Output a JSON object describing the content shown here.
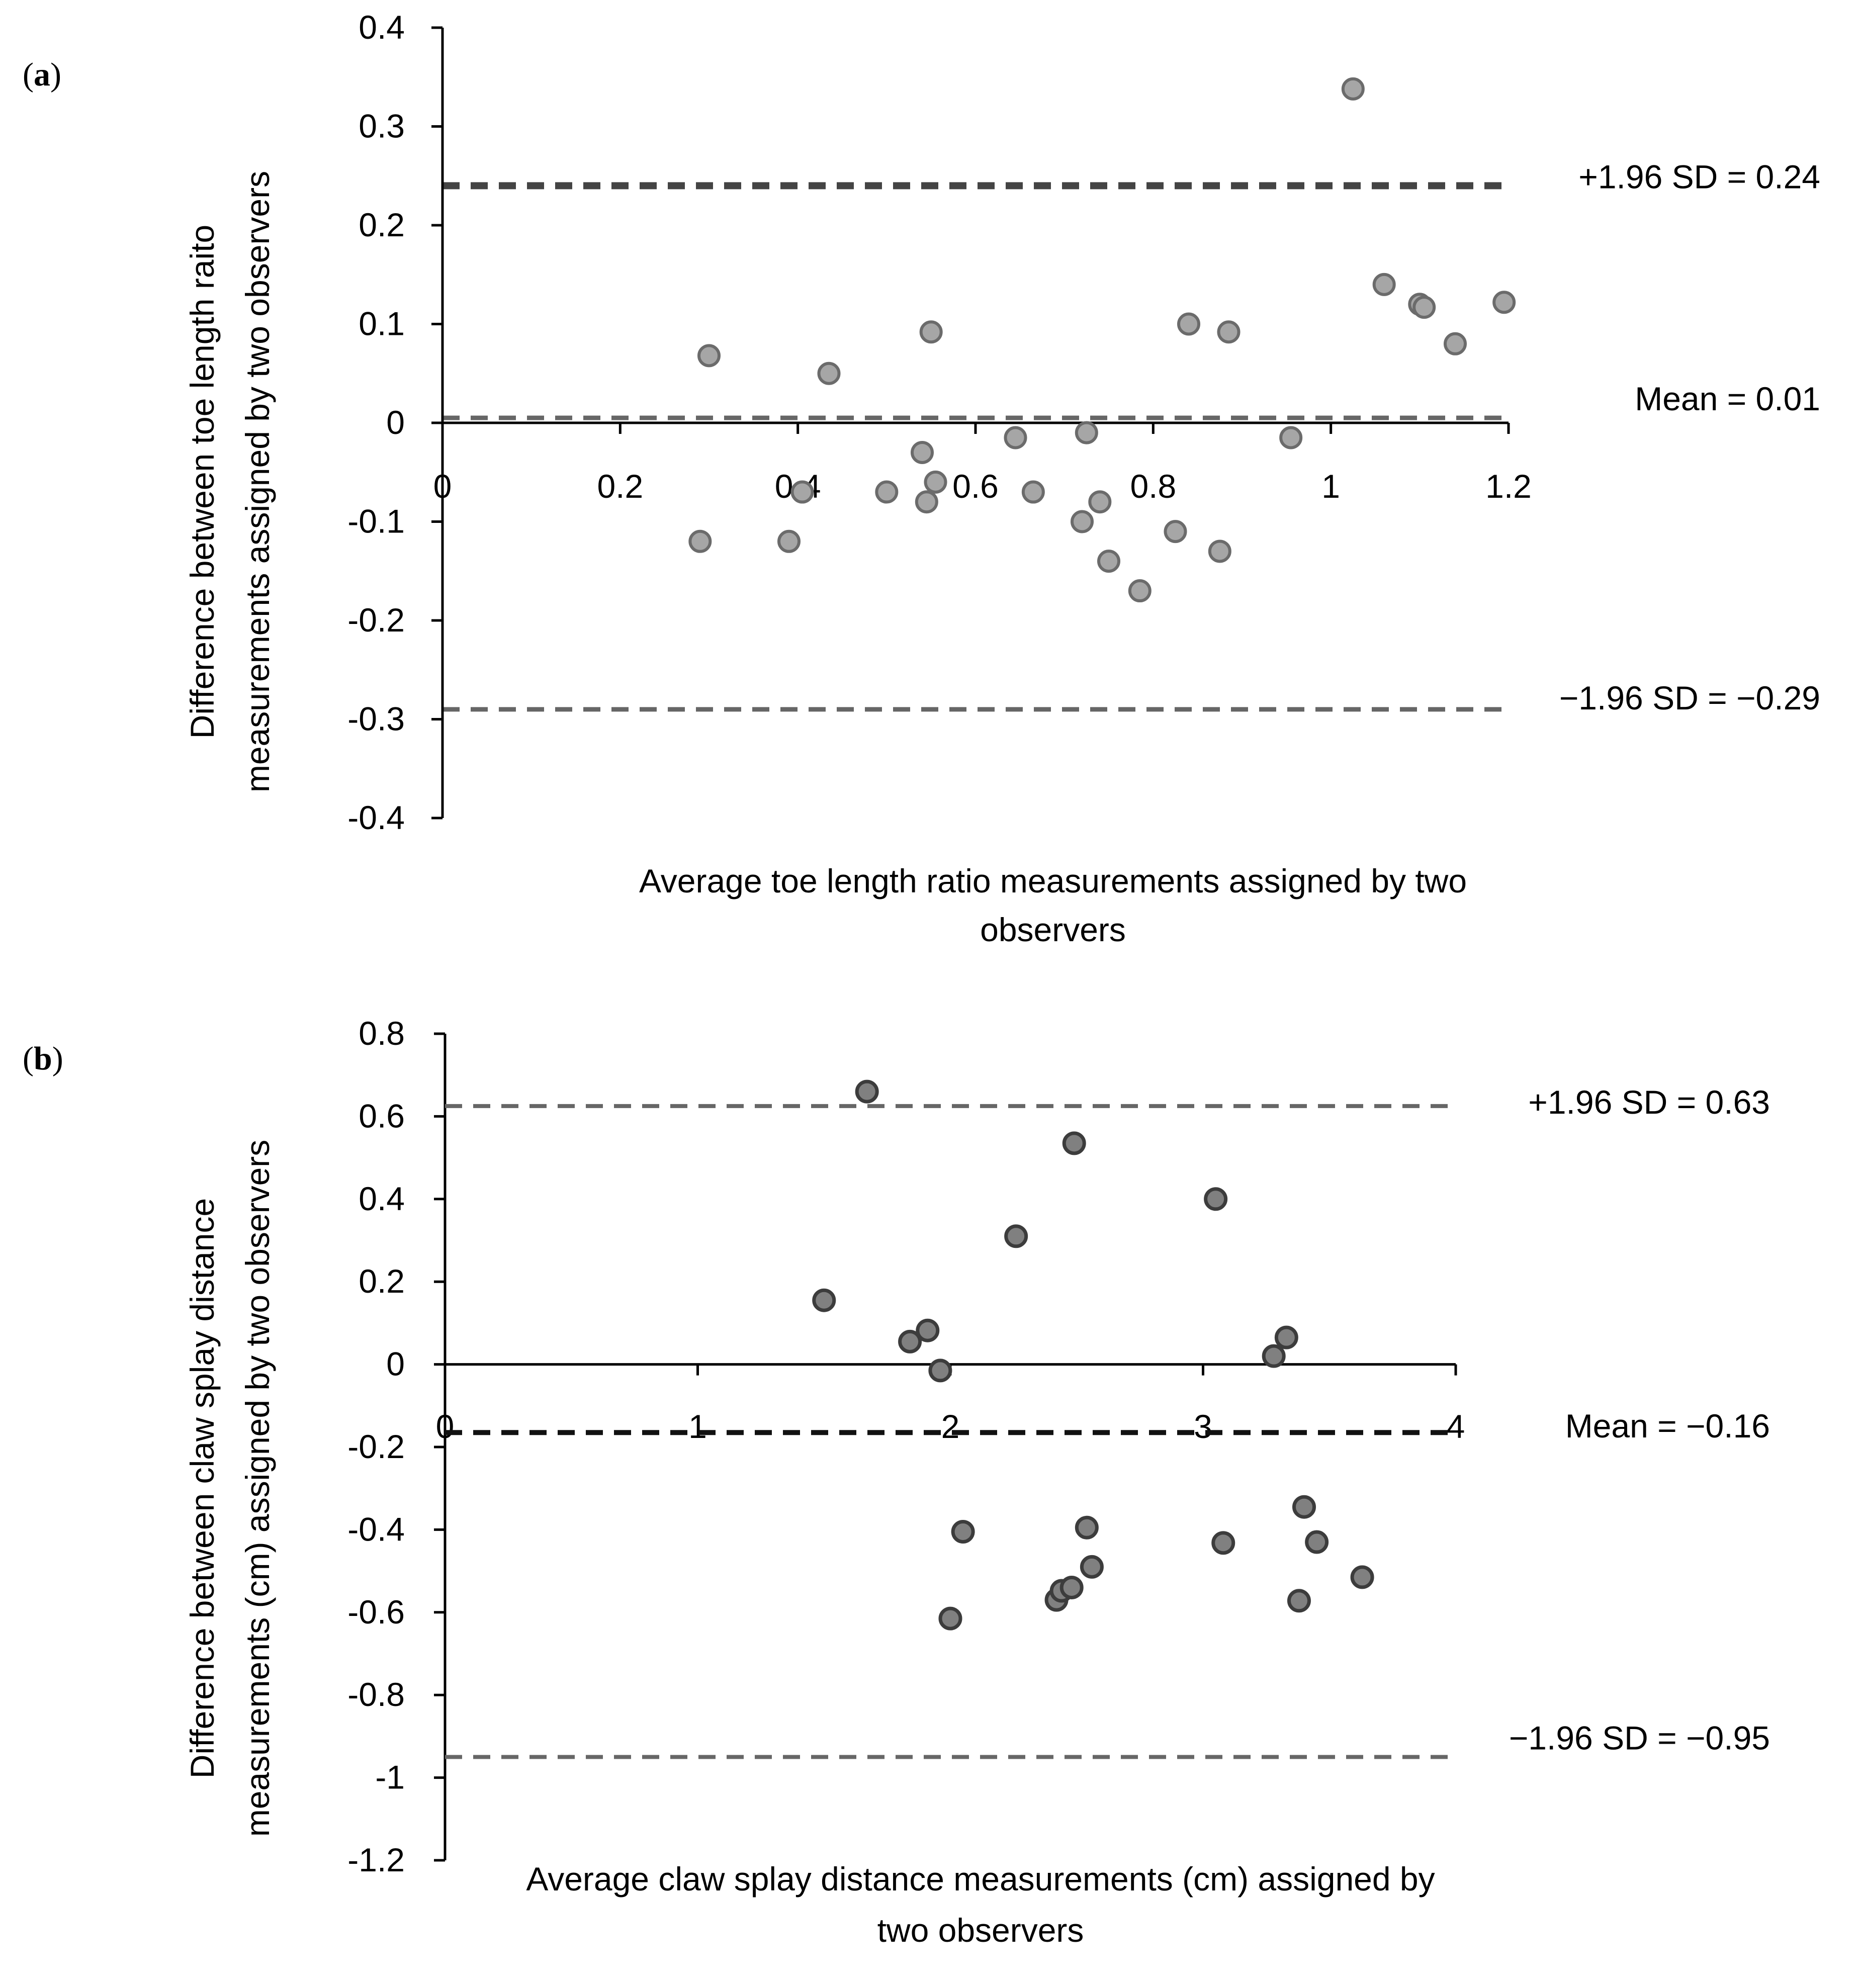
{
  "chart_data": [
    {
      "type": "scatter",
      "panel_label": "(a)",
      "panel_letter": "a",
      "xlabel_lines": [
        "Average toe length ratio measurements assigned by two",
        "observers"
      ],
      "ylabel_lines": [
        "Difference between toe length raito",
        "measurements assigned by two observers"
      ],
      "xlim": [
        0,
        1.2
      ],
      "ylim": [
        -0.4,
        0.4
      ],
      "x_ticks": [
        0,
        0.2,
        0.4,
        0.6,
        0.8,
        1,
        1.2
      ],
      "x_tick_labels": [
        "0",
        "0.2",
        "0.4",
        "0.6",
        "0.8",
        "1",
        "1.2"
      ],
      "y_ticks": [
        0.4,
        0.3,
        0.2,
        0.1,
        0,
        -0.1,
        -0.2,
        -0.3,
        -0.4
      ],
      "y_tick_labels": [
        "0.4",
        "0.3",
        "0.2",
        "0.1",
        "0",
        "-0.1",
        "-0.2",
        "-0.3",
        "-0.4"
      ],
      "reference_lines": [
        {
          "name": "upper-limit",
          "value": 0.24,
          "label": "+1.96 SD = 0.24",
          "color": "#444444"
        },
        {
          "name": "mean",
          "value": 0.005,
          "label": "Mean = 0.01",
          "color": "#666666"
        },
        {
          "name": "lower-limit",
          "value": -0.29,
          "label": "−1.96 SD = −0.29",
          "color": "#666666"
        }
      ],
      "point_color": "#a6a6a6",
      "point_stroke": "#6b6b6b",
      "points": [
        {
          "x": 0.3,
          "y": 0.068
        },
        {
          "x": 0.29,
          "y": -0.12
        },
        {
          "x": 0.39,
          "y": -0.12
        },
        {
          "x": 0.405,
          "y": -0.07
        },
        {
          "x": 0.435,
          "y": 0.05
        },
        {
          "x": 0.5,
          "y": -0.07
        },
        {
          "x": 0.54,
          "y": -0.03
        },
        {
          "x": 0.545,
          "y": -0.08
        },
        {
          "x": 0.55,
          "y": 0.092
        },
        {
          "x": 0.555,
          "y": -0.06
        },
        {
          "x": 0.645,
          "y": -0.015
        },
        {
          "x": 0.665,
          "y": -0.07
        },
        {
          "x": 0.72,
          "y": -0.1
        },
        {
          "x": 0.725,
          "y": -0.01
        },
        {
          "x": 0.74,
          "y": -0.08
        },
        {
          "x": 0.75,
          "y": -0.14
        },
        {
          "x": 0.785,
          "y": -0.17
        },
        {
          "x": 0.825,
          "y": -0.11
        },
        {
          "x": 0.84,
          "y": 0.1
        },
        {
          "x": 0.875,
          "y": -0.13
        },
        {
          "x": 0.885,
          "y": 0.092
        },
        {
          "x": 0.955,
          "y": -0.015
        },
        {
          "x": 1.025,
          "y": 0.338
        },
        {
          "x": 1.06,
          "y": 0.14
        },
        {
          "x": 1.1,
          "y": 0.12
        },
        {
          "x": 1.105,
          "y": 0.117
        },
        {
          "x": 1.14,
          "y": 0.08
        },
        {
          "x": 1.195,
          "y": 0.122
        }
      ]
    },
    {
      "type": "scatter",
      "panel_label": "(b)",
      "panel_letter": "b",
      "xlabel_lines": [
        "Average claw splay distance measurements (cm) assigned by",
        "two observers"
      ],
      "ylabel_lines": [
        "Difference between claw splay distance",
        "measurements (cm) assigned by two observers"
      ],
      "xlim": [
        0,
        4
      ],
      "ylim": [
        -1.2,
        0.8
      ],
      "x_ticks": [
        0,
        1,
        2,
        3,
        4
      ],
      "x_tick_labels": [
        "0",
        "1",
        "2",
        "3",
        "4"
      ],
      "y_ticks": [
        0.8,
        0.6,
        0.4,
        0.2,
        0,
        -0.2,
        -0.4,
        -0.6,
        -0.8,
        -1,
        -1.2
      ],
      "y_tick_labels": [
        "0.8",
        "0.6",
        "0.4",
        "0.2",
        "0",
        "-0.2",
        "-0.4",
        "-0.6",
        "-0.8",
        "-1",
        "-1.2"
      ],
      "reference_lines": [
        {
          "name": "upper-limit",
          "value": 0.625,
          "label": "+1.96 SD = 0.63",
          "color": "#666666"
        },
        {
          "name": "mean",
          "value": -0.165,
          "label": "Mean = −0.16",
          "color": "#111111"
        },
        {
          "name": "lower-limit",
          "value": -0.95,
          "label": "−1.96 SD = −0.95",
          "color": "#666666"
        }
      ],
      "point_color": "#808080",
      "point_stroke": "#3c3c3c",
      "points": [
        {
          "x": 1.5,
          "y": 0.155
        },
        {
          "x": 1.67,
          "y": 0.66
        },
        {
          "x": 1.84,
          "y": 0.055
        },
        {
          "x": 1.91,
          "y": 0.082
        },
        {
          "x": 1.96,
          "y": -0.015
        },
        {
          "x": 2.0,
          "y": -0.615
        },
        {
          "x": 2.05,
          "y": -0.405
        },
        {
          "x": 2.26,
          "y": 0.31
        },
        {
          "x": 2.42,
          "y": -0.57
        },
        {
          "x": 2.44,
          "y": -0.548
        },
        {
          "x": 2.48,
          "y": -0.54
        },
        {
          "x": 2.49,
          "y": 0.535
        },
        {
          "x": 2.54,
          "y": -0.395
        },
        {
          "x": 2.56,
          "y": -0.49
        },
        {
          "x": 3.05,
          "y": 0.4
        },
        {
          "x": 3.08,
          "y": -0.432
        },
        {
          "x": 3.28,
          "y": 0.02
        },
        {
          "x": 3.33,
          "y": 0.065
        },
        {
          "x": 3.38,
          "y": -0.572
        },
        {
          "x": 3.4,
          "y": -0.345
        },
        {
          "x": 3.45,
          "y": -0.43
        },
        {
          "x": 3.63,
          "y": -0.515
        }
      ]
    }
  ]
}
